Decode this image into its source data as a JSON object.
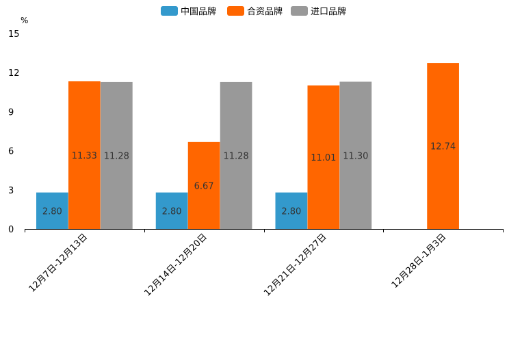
{
  "chart_data": {
    "type": "bar",
    "unit": "%",
    "categories": [
      "12月7日-12月13日",
      "12月14日-12月20日",
      "12月21日-12月27日",
      "12月28日-1月3日"
    ],
    "series": [
      {
        "name": "中国品牌",
        "color": "#3399cc",
        "values": [
          2.8,
          2.8,
          2.8,
          null
        ],
        "labels": [
          "2.80",
          "2.80",
          "2.80",
          ""
        ]
      },
      {
        "name": "合资品牌",
        "color": "#ff6600",
        "values": [
          11.33,
          6.67,
          11.01,
          12.74
        ],
        "labels": [
          "11.33",
          "6.67",
          "11.01",
          "12.74"
        ]
      },
      {
        "name": "进口品牌",
        "color": "#999999",
        "values": [
          11.28,
          11.28,
          11.3,
          null
        ],
        "labels": [
          "11.28",
          "11.28",
          "11.30",
          ""
        ]
      }
    ],
    "ylim": [
      0,
      15
    ],
    "yticks": [
      "0",
      "3",
      "6",
      "9",
      "12",
      "15"
    ],
    "legend_position": "top"
  }
}
